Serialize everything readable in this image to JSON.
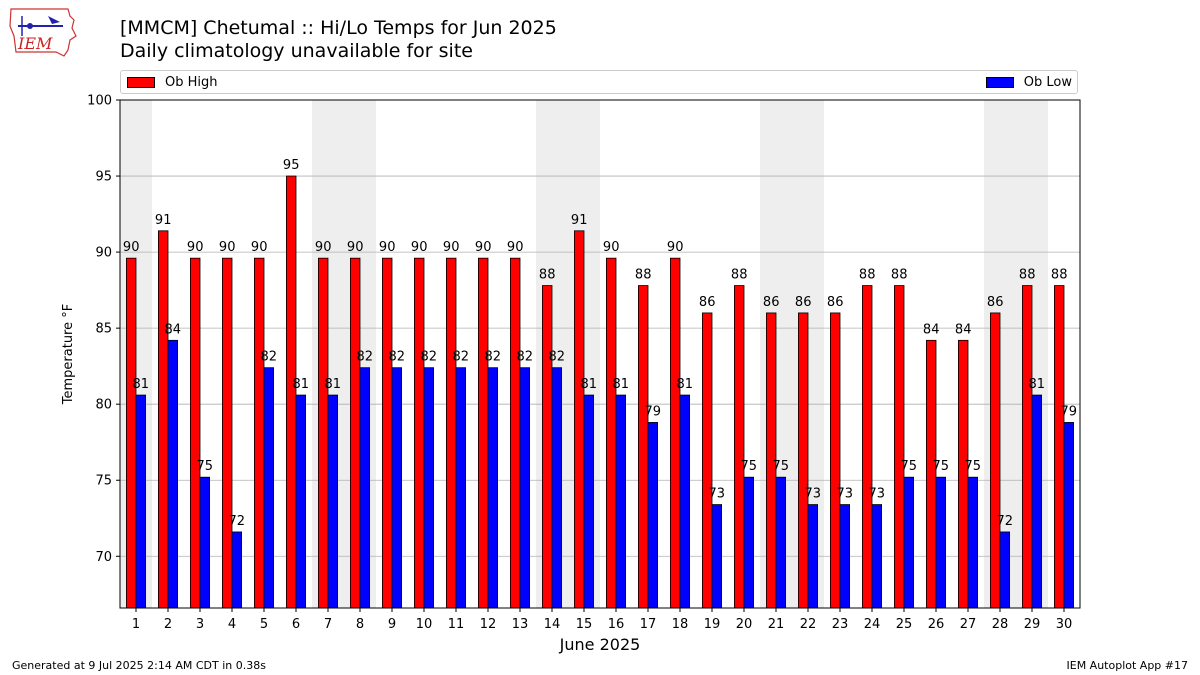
{
  "header": {
    "title": "[MMCM] Chetumal :: Hi/Lo Temps for Jun 2025",
    "subtitle": "Daily climatology unavailable for site",
    "logo_text": "IEM"
  },
  "footer": {
    "generated": "Generated at 9 Jul 2025 2:14 AM CDT in 0.38s",
    "app": "IEM Autoplot App #17"
  },
  "colors": {
    "high": "#ff0000",
    "low": "#0000ff",
    "weekend_shade": "#eeeeee",
    "grid": "#b0b0b0"
  },
  "chart_data": {
    "type": "bar",
    "categories": [
      "1",
      "2",
      "3",
      "4",
      "5",
      "6",
      "7",
      "8",
      "9",
      "10",
      "11",
      "12",
      "13",
      "14",
      "15",
      "16",
      "17",
      "18",
      "19",
      "20",
      "21",
      "22",
      "23",
      "24",
      "25",
      "26",
      "27",
      "28",
      "29",
      "30"
    ],
    "series": [
      {
        "name": "Ob High",
        "color": "#ff0000",
        "values": [
          89.6,
          91.4,
          89.6,
          89.6,
          89.6,
          95.0,
          89.6,
          89.6,
          89.6,
          89.6,
          89.6,
          89.6,
          89.6,
          87.8,
          91.4,
          89.6,
          87.8,
          89.6,
          86.0,
          87.8,
          86.0,
          86.0,
          86.0,
          87.8,
          87.8,
          84.2,
          84.2,
          86.0,
          87.8,
          87.8
        ],
        "labels": [
          "90",
          "91",
          "90",
          "90",
          "90",
          "95",
          "90",
          "90",
          "90",
          "90",
          "90",
          "90",
          "90",
          "88",
          "91",
          "90",
          "88",
          "90",
          "86",
          "88",
          "86",
          "86",
          "86",
          "88",
          "88",
          "84",
          "84",
          "86",
          "88",
          "88"
        ]
      },
      {
        "name": "Ob Low",
        "color": "#0000ff",
        "values": [
          80.6,
          84.2,
          75.2,
          71.6,
          82.4,
          80.6,
          80.6,
          82.4,
          82.4,
          82.4,
          82.4,
          82.4,
          82.4,
          82.4,
          80.6,
          80.6,
          78.8,
          80.6,
          73.4,
          75.2,
          75.2,
          73.4,
          73.4,
          73.4,
          75.2,
          75.2,
          75.2,
          71.6,
          80.6,
          78.8
        ],
        "labels": [
          "81",
          "84",
          "75",
          "72",
          "82",
          "81",
          "81",
          "82",
          "82",
          "82",
          "82",
          "82",
          "82",
          "82",
          "81",
          "81",
          "79",
          "81",
          "73",
          "75",
          "75",
          "73",
          "73",
          "73",
          "75",
          "75",
          "75",
          "72",
          "81",
          "79"
        ]
      }
    ],
    "weekend_days": [
      1,
      7,
      8,
      14,
      15,
      21,
      22,
      28,
      29
    ],
    "xlabel": "June 2025",
    "ylabel": "Temperature °F",
    "ylim": [
      66.6,
      100
    ],
    "yticks": [
      70,
      75,
      80,
      85,
      90,
      95,
      100
    ],
    "grid": true,
    "legend": "top"
  }
}
